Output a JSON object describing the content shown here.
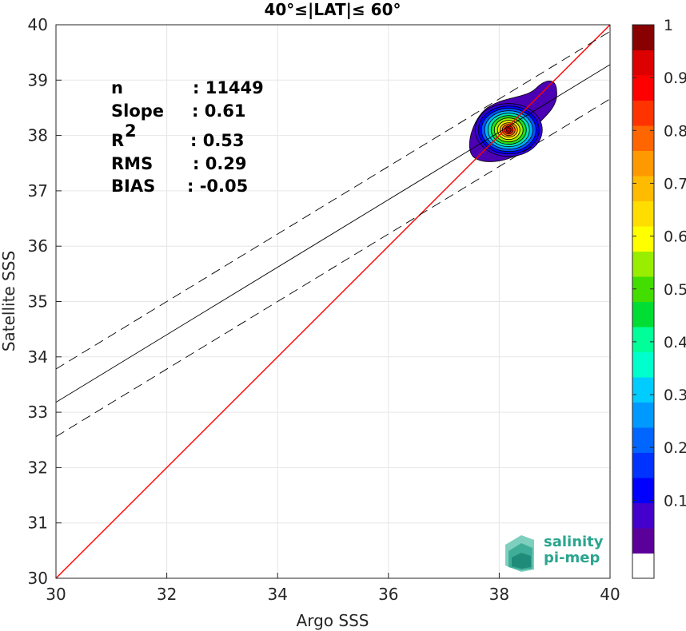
{
  "chart_data": {
    "type": "scatter",
    "title": "40°≤|LAT|≤ 60°",
    "xlabel": "Argo SSS",
    "ylabel": "Satellite SSS",
    "xlim": [
      30,
      40
    ],
    "ylim": [
      30,
      40
    ],
    "xticks": [
      "30",
      "32",
      "34",
      "36",
      "38",
      "40"
    ],
    "yticks": [
      "30",
      "31",
      "32",
      "33",
      "34",
      "35",
      "36",
      "37",
      "38",
      "39",
      "40"
    ],
    "grid": true,
    "stats": [
      {
        "label": "n",
        "value": ": 11449"
      },
      {
        "label": "Slope",
        "value": ": 0.61"
      },
      {
        "label": "R",
        "sup": "2",
        "value": ": 0.53"
      },
      {
        "label": "RMS",
        "value": ": 0.29"
      },
      {
        "label": "BIAS",
        "value": ": -0.05"
      }
    ],
    "lines": {
      "identity": {
        "color": "#ff0000",
        "x": [
          30,
          40
        ],
        "y": [
          30,
          40
        ]
      },
      "regression": {
        "color": "#000000",
        "slope": 0.61,
        "intercept_at_30": 33.18
      },
      "upper_band": {
        "color": "#000000",
        "dash": true,
        "intercept_at_30": 33.78
      },
      "lower_band": {
        "color": "#000000",
        "dash": true,
        "intercept_at_30": 32.56
      }
    },
    "density_center": {
      "x": 38.2,
      "y": 38.1
    },
    "colorbar": {
      "ticks": [
        "0.1",
        "0.2",
        "0.3",
        "0.4",
        "0.5",
        "0.6",
        "0.7",
        "0.8",
        "0.9",
        "1"
      ],
      "colors": [
        "#ffffff",
        "#5b0099",
        "#4400cc",
        "#0000ff",
        "#0033ff",
        "#0066ff",
        "#0099ff",
        "#00ccff",
        "#00ffcc",
        "#00ff99",
        "#00dd33",
        "#44dd00",
        "#99ee00",
        "#ffff00",
        "#ffdd00",
        "#ffbb00",
        "#ff9900",
        "#ff6600",
        "#ff3300",
        "#ff0000",
        "#dd0000",
        "#880000"
      ]
    },
    "logo": {
      "line1": "salinity",
      "line2": "pi-mep"
    }
  }
}
